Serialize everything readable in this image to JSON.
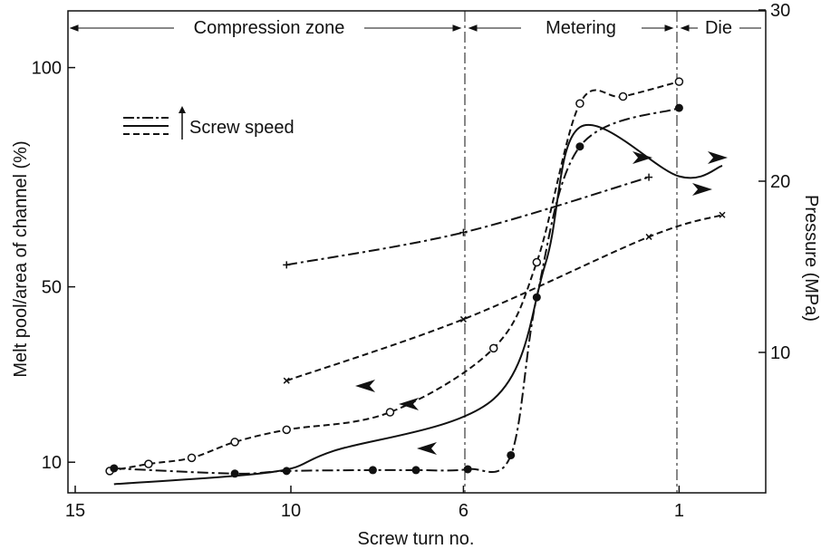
{
  "chart_data": {
    "type": "line",
    "xlabel": "Screw turn no.",
    "ylabel_left": "Melt pool/area of channel (%)",
    "ylabel_right": "Pressure (MPa)",
    "x_ticks": [
      "15",
      "10",
      "6",
      "1"
    ],
    "y_left_ticks": [
      "10",
      "50",
      "100"
    ],
    "y_right_ticks": [
      "10",
      "20",
      "30"
    ],
    "zones": [
      "Compression zone",
      "Metering",
      "Die"
    ],
    "legend_label": "Screw speed",
    "series": [
      {
        "style": "dash",
        "markers": "open-circle",
        "x": [
          14.2,
          13.3,
          12.3,
          11.3,
          10.1,
          7.7,
          5.3,
          4.3,
          3.3,
          2.3,
          1.0
        ],
        "y": [
          8.0,
          9.6,
          11.0,
          14.6,
          17.4,
          21.4,
          36.0,
          55.6,
          91.8,
          93.4,
          96.8
        ]
      },
      {
        "style": "dash-dot",
        "markers": "filled-circle",
        "x": [
          14.1,
          11.3,
          10.1,
          8.1,
          7.1,
          5.9,
          4.9,
          4.3,
          3.3,
          1.0
        ],
        "y": [
          8.6,
          7.4,
          8.0,
          8.2,
          8.2,
          8.4,
          11.6,
          47.6,
          82.0,
          90.8
        ]
      },
      {
        "style": "solid",
        "markers": "none",
        "x": [
          14.1,
          10.4,
          9.0,
          5.3,
          4.1,
          3.3,
          1.0,
          0.0
        ],
        "y": [
          5.0,
          7.8,
          12.6,
          24.4,
          55.2,
          86.4,
          75.2,
          77.6
        ]
      },
      {
        "style": "dash-dot",
        "markers": "plus",
        "x": [
          10.1,
          6.0,
          1.7
        ],
        "y": [
          55.0,
          62.4,
          75.0
        ]
      },
      {
        "style": "dash",
        "markers": "cross",
        "x": [
          10.1,
          6.0,
          1.7,
          0.0
        ],
        "y": [
          28.6,
          42.6,
          61.4,
          66.4
        ]
      }
    ]
  }
}
